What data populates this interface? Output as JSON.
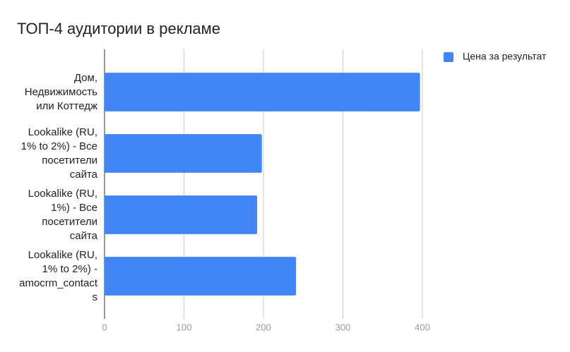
{
  "chart_data": {
    "type": "hbar",
    "title": "ТОП-4 аудитории в рекламе",
    "categories": [
      "Дом, Недвижимость или Коттедж",
      "Lookalike (RU, 1% to 2%) - Все посетители сайта",
      "Lookalike (RU, 1%) - Все посетители сайта",
      "Lookalike (RU, 1% to 2%) - amocrm_contacts"
    ],
    "series": [
      {
        "name": "Цена за результат",
        "color": "#4285f4",
        "values": [
          397,
          198,
          192,
          241
        ]
      }
    ],
    "xlim": [
      0,
      400
    ],
    "xticks": [
      0,
      100,
      200,
      300,
      400
    ],
    "grid": true,
    "legend": "top-right"
  }
}
